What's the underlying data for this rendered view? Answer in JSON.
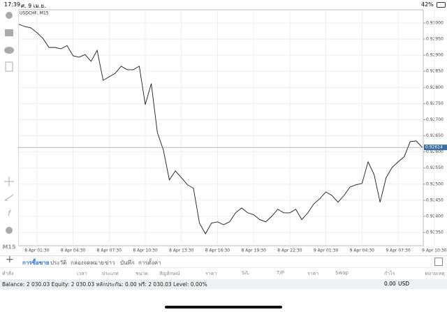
{
  "status_bar": {
    "time": "17:39",
    "date": "ศ. 9 เม.ย.",
    "battery": "42%"
  },
  "sidebar": {
    "timeframe": "M15"
  },
  "chart": {
    "type": "line",
    "title": "USDCHF, M15",
    "color": "#1a1a1a",
    "grid": true,
    "categories": [
      null,
      null,
      null,
      "8 Apr 01:30",
      null,
      null,
      null,
      null,
      null,
      "8 Apr 04:30",
      null,
      null,
      null,
      null,
      null,
      "8 Apr 07:30",
      null,
      null,
      null,
      null,
      null,
      "8 Apr 10:30",
      null,
      null,
      null,
      null,
      null,
      "8 Apr 13:30",
      null,
      null,
      null,
      null,
      null,
      "8 Apr 16:30",
      null,
      null,
      null,
      null,
      null,
      "8 Apr 19:30",
      null,
      null,
      null,
      null,
      null,
      "8 Apr 22:30",
      null,
      null,
      null,
      null,
      null,
      "9 Apr 01:30",
      null,
      null,
      null,
      null,
      null,
      "9 Apr 04:30",
      null,
      null,
      null,
      null,
      null,
      "9 Apr 07:30",
      null,
      null,
      null,
      null,
      null,
      "9 Apr 10:30"
    ],
    "values": [
      0.92996,
      0.92989,
      0.92985,
      0.9297,
      0.92952,
      0.92924,
      0.92924,
      0.9292,
      0.9293,
      0.92898,
      0.92894,
      0.92902,
      0.92881,
      0.92915,
      0.92822,
      0.92833,
      0.92844,
      0.92866,
      0.92855,
      0.92855,
      0.92866,
      0.92747,
      0.92812,
      0.9266,
      0.92606,
      0.92513,
      0.92541,
      0.9252,
      0.92498,
      0.92487,
      0.92379,
      0.92346,
      0.92379,
      0.92383,
      0.92374,
      0.92383,
      0.92411,
      0.92426,
      0.92411,
      0.92405,
      0.9239,
      0.92383,
      0.924,
      0.92422,
      0.92411,
      0.92411,
      0.92422,
      0.9239,
      0.92411,
      0.92439,
      0.92455,
      0.92476,
      0.92465,
      0.92444,
      0.92465,
      0.92491,
      0.92498,
      0.92502,
      0.92569,
      0.9253,
      0.92444,
      0.9252,
      0.92552,
      0.92569,
      0.92585,
      0.92632,
      0.92634,
      0.92614,
      null,
      null
    ],
    "ylim": [
      0.92309,
      0.93041
    ],
    "yticks": [
      {
        "value": 0.93,
        "label": "0.93000"
      },
      {
        "value": 0.9295,
        "label": "0.92950"
      },
      {
        "value": 0.929,
        "label": "0.92900"
      },
      {
        "value": 0.9285,
        "label": "0.92850"
      },
      {
        "value": 0.928,
        "label": "0.92800"
      },
      {
        "value": 0.9275,
        "label": "0.92750"
      },
      {
        "value": 0.927,
        "label": "0.92700"
      },
      {
        "value": 0.9265,
        "label": "0.92650"
      },
      {
        "value": 0.926,
        "label": "0.92600"
      },
      {
        "value": 0.9255,
        "label": "0.92550"
      },
      {
        "value": 0.925,
        "label": "0.92500"
      },
      {
        "value": 0.9245,
        "label": "0.92450"
      },
      {
        "value": 0.924,
        "label": "0.92400"
      },
      {
        "value": 0.9235,
        "label": "0.92350"
      }
    ],
    "current_price": 0.92614
  },
  "tabs": [
    "การซื้อขาย",
    "ประวัติ",
    "กล่องจดหมาย",
    "ข่าว",
    "บันทึก",
    "การตั้งค่า"
  ],
  "columns": [
    "คำสั่ง",
    "เวลา",
    "ประเภท",
    "ขนาด",
    "สัญลักษณ์",
    "ราคา",
    "S/L",
    "T/P",
    "ราคา",
    "Swap",
    "กำไร",
    "หมายเหตุ"
  ],
  "balance": {
    "summary": "Balance: 2 030.03 Equity: 2 030.03 หลักประกัน: 0.00 ฟรี: 2 030.03 Level: 0.00%",
    "profit": "0.00",
    "currency": "USD"
  }
}
